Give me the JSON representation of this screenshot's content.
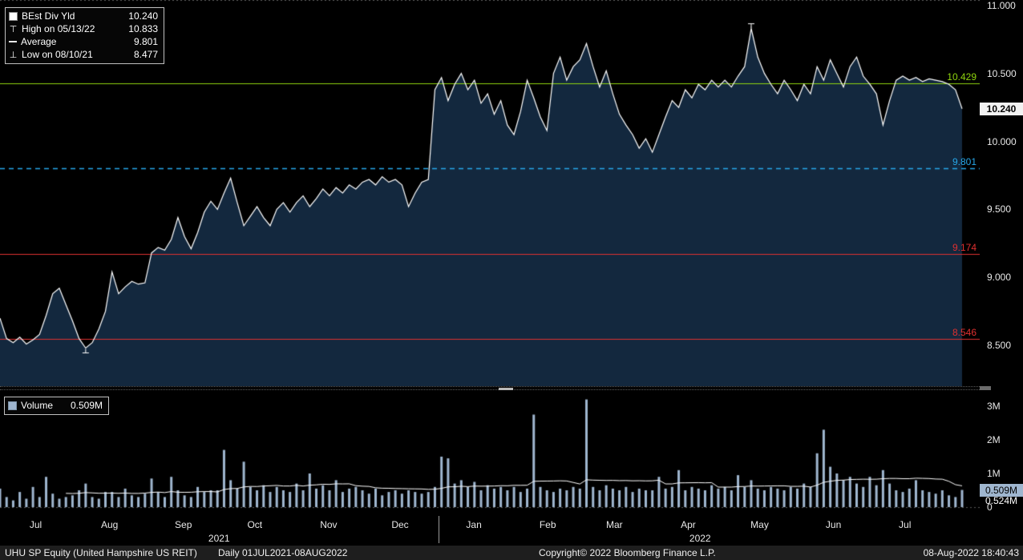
{
  "icons": {
    "series_marker": "square-swatch",
    "volume_marker": "square-swatch",
    "high_marker": "⊤",
    "low_marker": "⊥",
    "average_marker": "dashed-line"
  },
  "legend": {
    "items": [
      {
        "label": "BEst Div Yld",
        "value": "10.240"
      },
      {
        "label": "High on 05/13/22",
        "value": "10.833"
      },
      {
        "label": "Average",
        "value": "9.801"
      },
      {
        "label": "Low on 08/10/21",
        "value": "8.477"
      }
    ]
  },
  "volume_legend": {
    "label": "Volume",
    "value": "0.509M"
  },
  "statusbar": {
    "left_security": "UHU SP Equity (United Hampshire US REIT)",
    "left_period": "Daily 01JUL2021-08AUG2022",
    "copyright": "Copyright© 2022 Bloomberg Finance L.P.",
    "timestamp": "08-Aug-2022 18:40:43"
  },
  "chart_data": {
    "type": "line",
    "title": "BEst Div Yld",
    "security": "UHU SP Equity (United Hampshire US REIT)",
    "period": "Daily 01JUL2021-08AUG2022",
    "x_month_labels": [
      "Jul",
      "Aug",
      "Sep",
      "Oct",
      "Nov",
      "Dec",
      "Jan",
      "Feb",
      "Mar",
      "Apr",
      "May",
      "Jun",
      "Jul"
    ],
    "month_days": [
      31,
      31,
      30,
      31,
      30,
      31,
      31,
      28,
      31,
      30,
      31,
      30,
      31
    ],
    "total_days": 404,
    "years": [
      "2021",
      "2022"
    ],
    "ylim": [
      8.2,
      11.04
    ],
    "y_ticks": [
      {
        "value": 11.0,
        "label": "11.000"
      },
      {
        "value": 10.5,
        "label": "10.500"
      },
      {
        "value": 10.0,
        "label": "10.000"
      },
      {
        "value": 9.5,
        "label": "9.500"
      },
      {
        "value": 9.0,
        "label": "9.000"
      },
      {
        "value": 8.5,
        "label": "8.500"
      }
    ],
    "volume_ylim": [
      0,
      3.45
    ],
    "volume_ticks": [
      {
        "value": 3,
        "label": "3M"
      },
      {
        "value": 2,
        "label": "2M"
      },
      {
        "value": 1,
        "label": "1M"
      },
      {
        "value": 0,
        "label": "0"
      }
    ],
    "level_lines": [
      {
        "value": 10.429,
        "label": "10.429",
        "color": "#8fd40e",
        "dash": false
      },
      {
        "value": 9.801,
        "label": "9.801",
        "color": "#27a7e9",
        "dash": true
      },
      {
        "value": 9.174,
        "label": "9.174",
        "color": "#e03030",
        "dash": false
      },
      {
        "value": 8.546,
        "label": "8.546",
        "color": "#e03030",
        "dash": false
      }
    ],
    "high": {
      "date": "05/13/22",
      "value": 10.833
    },
    "low": {
      "date": "08/10/21",
      "value": 8.477
    },
    "average": 9.801,
    "last_value": 10.24,
    "last_value_label": "10.240",
    "volume_last": 0.509,
    "volume_badge_label": "0.509M",
    "volume_avg_label": "0.524M",
    "series": [
      {
        "name": "BEst Div Yld",
        "type": "area-line",
        "color": "#ffffff",
        "fill": "#13283e",
        "values": [
          8.7,
          8.55,
          8.52,
          8.56,
          8.51,
          8.54,
          8.58,
          8.72,
          8.88,
          8.92,
          8.8,
          8.68,
          8.55,
          8.48,
          8.52,
          8.62,
          8.75,
          9.04,
          8.88,
          8.93,
          8.97,
          8.95,
          8.96,
          9.18,
          9.22,
          9.2,
          9.28,
          9.44,
          9.3,
          9.21,
          9.33,
          9.48,
          9.56,
          9.5,
          9.62,
          9.73,
          9.55,
          9.38,
          9.45,
          9.52,
          9.44,
          9.38,
          9.5,
          9.55,
          9.48,
          9.55,
          9.6,
          9.52,
          9.58,
          9.65,
          9.6,
          9.66,
          9.62,
          9.68,
          9.65,
          9.7,
          9.72,
          9.68,
          9.74,
          9.7,
          9.72,
          9.68,
          9.52,
          9.62,
          9.7,
          9.72,
          10.38,
          10.47,
          10.3,
          10.42,
          10.5,
          10.38,
          10.45,
          10.28,
          10.35,
          10.2,
          10.3,
          10.12,
          10.05,
          10.22,
          10.45,
          10.32,
          10.18,
          10.08,
          10.5,
          10.62,
          10.45,
          10.55,
          10.6,
          10.72,
          10.55,
          10.4,
          10.52,
          10.35,
          10.2,
          10.12,
          10.05,
          9.95,
          10.02,
          9.92,
          10.05,
          10.18,
          10.3,
          10.25,
          10.38,
          10.32,
          10.42,
          10.38,
          10.45,
          10.4,
          10.45,
          10.4,
          10.48,
          10.55,
          10.83,
          10.62,
          10.5,
          10.42,
          10.35,
          10.45,
          10.38,
          10.3,
          10.42,
          10.35,
          10.55,
          10.45,
          10.6,
          10.5,
          10.4,
          10.55,
          10.62,
          10.48,
          10.42,
          10.35,
          10.12,
          10.3,
          10.45,
          10.48,
          10.45,
          10.47,
          10.44,
          10.46,
          10.45,
          10.44,
          10.42,
          10.38,
          10.24
        ]
      },
      {
        "name": "Volume",
        "type": "bar",
        "color": "#9fb6cf",
        "avg_line_color": "#ffffff",
        "values": [
          0.55,
          0.3,
          0.2,
          0.45,
          0.25,
          0.6,
          0.3,
          0.9,
          0.4,
          0.25,
          0.3,
          0.35,
          0.5,
          0.7,
          0.3,
          0.25,
          0.45,
          0.45,
          0.3,
          0.55,
          0.35,
          0.3,
          0.4,
          0.85,
          0.45,
          0.3,
          0.9,
          0.5,
          0.35,
          0.3,
          0.6,
          0.45,
          0.5,
          0.5,
          1.7,
          0.8,
          0.55,
          1.35,
          0.6,
          0.5,
          0.65,
          0.45,
          0.6,
          0.5,
          0.45,
          0.7,
          0.5,
          1.0,
          0.55,
          0.65,
          0.5,
          0.8,
          0.45,
          0.55,
          0.6,
          0.5,
          0.4,
          0.55,
          0.35,
          0.45,
          0.5,
          0.4,
          0.5,
          0.45,
          0.4,
          0.45,
          0.6,
          1.5,
          1.45,
          0.7,
          0.8,
          0.6,
          0.75,
          0.5,
          0.65,
          0.55,
          0.6,
          0.5,
          0.6,
          0.45,
          0.55,
          2.75,
          0.6,
          0.5,
          0.45,
          0.55,
          0.5,
          0.6,
          0.55,
          3.2,
          0.6,
          0.5,
          0.65,
          0.55,
          0.5,
          0.6,
          0.45,
          0.55,
          0.5,
          0.5,
          0.9,
          0.55,
          0.6,
          1.1,
          0.5,
          0.6,
          0.55,
          0.5,
          0.65,
          0.55,
          0.6,
          0.5,
          0.95,
          0.6,
          0.8,
          0.55,
          0.5,
          0.6,
          0.55,
          0.5,
          0.6,
          0.55,
          0.7,
          0.6,
          1.6,
          2.3,
          1.2,
          1.0,
          0.8,
          0.9,
          0.7,
          0.6,
          0.9,
          0.65,
          1.1,
          0.7,
          0.5,
          0.45,
          0.55,
          0.8,
          0.5,
          0.45,
          0.4,
          0.5,
          0.35,
          0.3,
          0.51
        ]
      }
    ]
  }
}
